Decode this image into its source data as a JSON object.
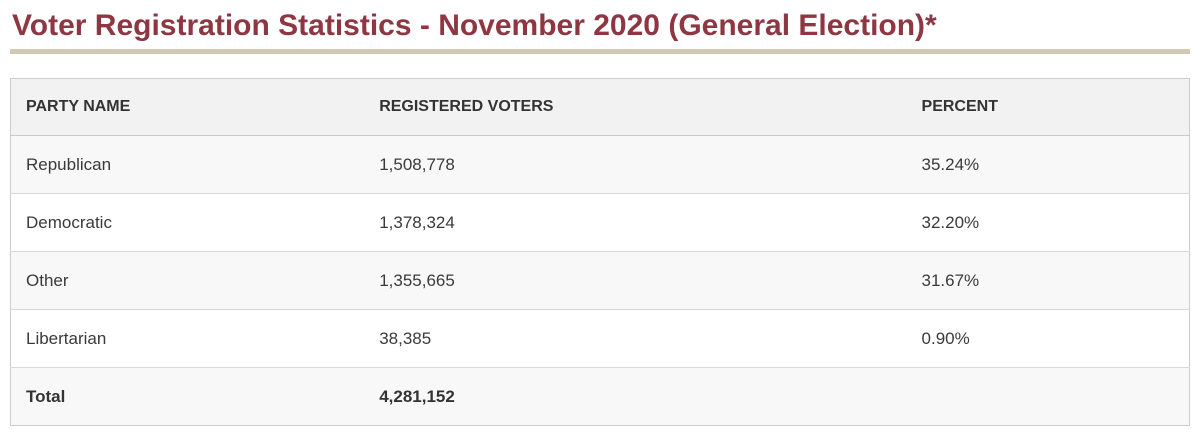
{
  "page": {
    "title": "Voter Registration Statistics - November 2020 (General Election)*"
  },
  "colors": {
    "title_maroon": "#8e3743",
    "rule_tan": "#cfc8b2",
    "header_bg": "#f2f2f2",
    "stripe_bg": "#f8f8f8",
    "table_border": "#cccccc",
    "text": "#3a3a3a"
  },
  "table": {
    "headers": [
      "PARTY NAME",
      "REGISTERED VOTERS",
      "PERCENT"
    ],
    "rows": [
      {
        "party": "Republican",
        "registered": "1,508,778",
        "percent": "35.24%"
      },
      {
        "party": "Democratic",
        "registered": "1,378,324",
        "percent": "32.20%"
      },
      {
        "party": "Other",
        "registered": "1,355,665",
        "percent": "31.67%"
      },
      {
        "party": "Libertarian",
        "registered": "38,385",
        "percent": "0.90%"
      }
    ],
    "total_row": {
      "party": "Total",
      "registered": "4,281,152",
      "percent": ""
    }
  }
}
